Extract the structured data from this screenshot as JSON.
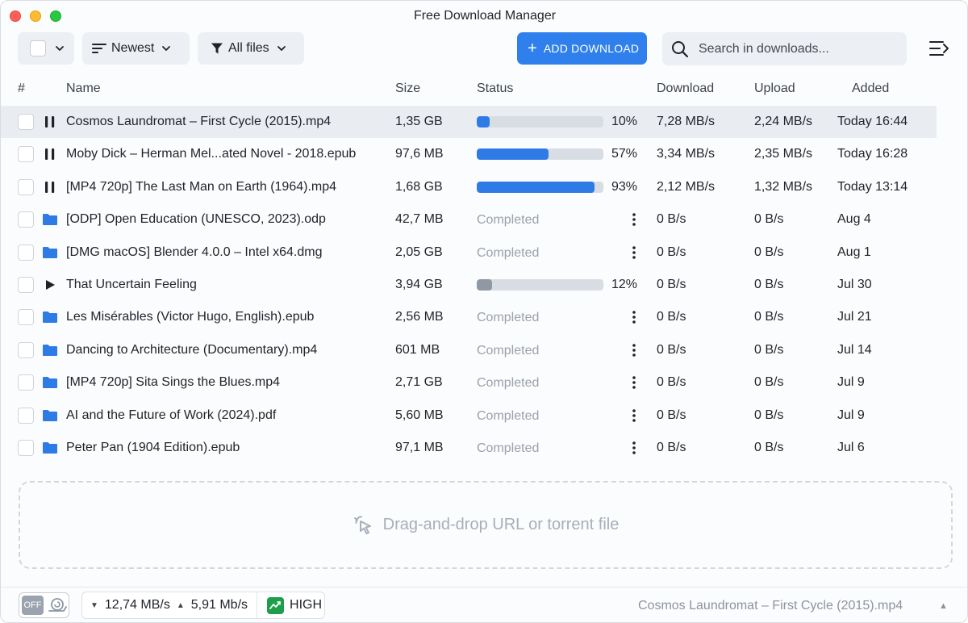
{
  "window": {
    "title": "Free Download Manager"
  },
  "toolbar": {
    "sort_label": "Newest",
    "filter_label": "All files",
    "add_label": "ADD DOWNLOAD",
    "search_placeholder": "Search in downloads..."
  },
  "columns": {
    "num": "#",
    "name": "Name",
    "size": "Size",
    "status": "Status",
    "download": "Download",
    "upload": "Upload",
    "added": "Added"
  },
  "downloads": [
    {
      "name": "Cosmos Laundromat – First Cycle (2015).mp4",
      "size": "1,35 GB",
      "state": "downloading",
      "progress": 10,
      "pct": "10%",
      "download": "7,28 MB/s",
      "upload": "2,24 MB/s",
      "added": "Today 16:44"
    },
    {
      "name": "Moby Dick – Herman Mel...ated Novel - 2018.epub",
      "size": "97,6 MB",
      "state": "downloading",
      "progress": 57,
      "pct": "57%",
      "download": "3,34 MB/s",
      "upload": "2,35 MB/s",
      "added": "Today 16:28"
    },
    {
      "name": "[MP4 720p] The Last Man on Earth (1964).mp4",
      "size": "1,68 GB",
      "state": "downloading",
      "progress": 93,
      "pct": "93%",
      "download": "2,12 MB/s",
      "upload": "1,32 MB/s",
      "added": "Today 13:14"
    },
    {
      "name": "[ODP] Open Education (UNESCO, 2023).odp",
      "size": "42,7 MB",
      "state": "completed",
      "status": "Completed",
      "download": "0 B/s",
      "upload": "0 B/s",
      "added": "Aug 4"
    },
    {
      "name": "[DMG macOS] Blender 4.0.0 – Intel x64.dmg",
      "size": "2,05 GB",
      "state": "completed",
      "status": "Completed",
      "download": "0 B/s",
      "upload": "0 B/s",
      "added": "Aug 1"
    },
    {
      "name": "That Uncertain Feeling",
      "size": "3,94 GB",
      "state": "paused",
      "progress": 12,
      "pct": "12%",
      "download": "0 B/s",
      "upload": "0 B/s",
      "added": "Jul 30"
    },
    {
      "name": "Les Misérables (Victor Hugo, English).epub",
      "size": "2,56 MB",
      "state": "completed",
      "status": "Completed",
      "download": "0 B/s",
      "upload": "0 B/s",
      "added": "Jul 21"
    },
    {
      "name": "Dancing to Architecture (Documentary).mp4",
      "size": "601 MB",
      "state": "completed",
      "status": "Completed",
      "download": "0 B/s",
      "upload": "0 B/s",
      "added": "Jul 14"
    },
    {
      "name": "[MP4 720p] Sita Sings the Blues.mp4",
      "size": "2,71 GB",
      "state": "completed",
      "status": "Completed",
      "download": "0 B/s",
      "upload": "0 B/s",
      "added": "Jul 9"
    },
    {
      "name": "AI and the Future of Work (2024).pdf",
      "size": "5,60 MB",
      "state": "completed",
      "status": "Completed",
      "download": "0 B/s",
      "upload": "0 B/s",
      "added": "Jul 9"
    },
    {
      "name": "Peter Pan (1904 Edition).epub",
      "size": "97,1 MB",
      "state": "completed",
      "status": "Completed",
      "download": "0 B/s",
      "upload": "0 B/s",
      "added": "Jul 6"
    }
  ],
  "dropzone": {
    "label": "Drag-and-drop URL or torrent file"
  },
  "statusbar": {
    "snail_label": "OFF",
    "down_speed": "12,74 MB/s",
    "up_speed": "5,91 Mb/s",
    "priority": "HIGH",
    "current_file": "Cosmos Laundromat – First Cycle (2015).mp4"
  },
  "colors": {
    "accent": "#2f80ed",
    "progress": "#2f7be6",
    "paused": "#8f98a3",
    "completed_text": "#9aa1ab",
    "folder": "#2f7be6",
    "priority_high": "#1e9e4a"
  }
}
